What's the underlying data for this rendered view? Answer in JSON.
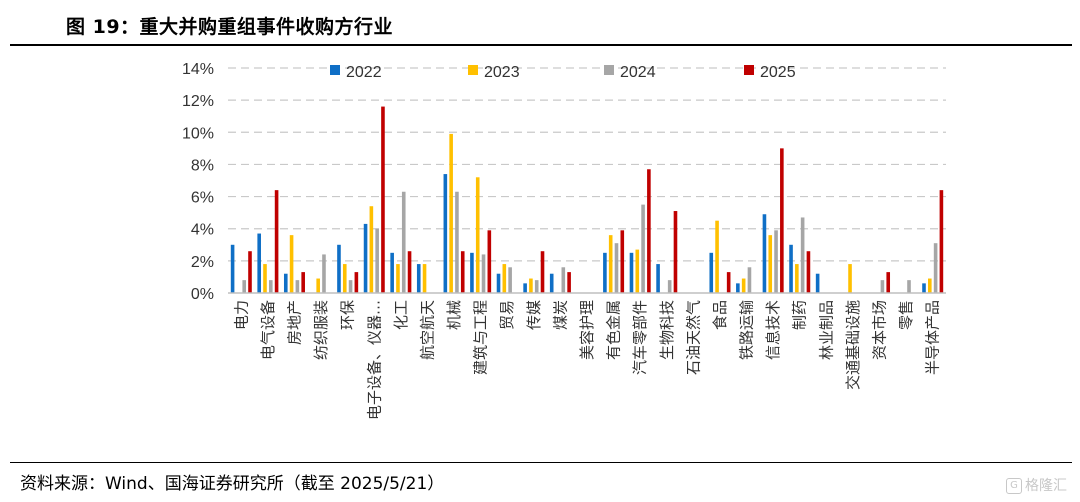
{
  "header": {
    "title": "图 19：重大并购重组事件收购方行业"
  },
  "footer": {
    "source": "资料来源：Wind、国海证券研究所（截至 2025/5/21）",
    "watermark": "格隆汇"
  },
  "chart_data": {
    "type": "bar",
    "title": "",
    "xlabel": "",
    "ylabel": "",
    "ylim": [
      0,
      14
    ],
    "y_ticks": [
      "0%",
      "2%",
      "4%",
      "6%",
      "8%",
      "10%",
      "12%",
      "14%"
    ],
    "grid": true,
    "legend_position": "top",
    "categories": [
      "电力",
      "电气设备",
      "房地产",
      "纺织服装",
      "环保",
      "电子设备、仪器…",
      "化工",
      "航空航天",
      "机械",
      "建筑与工程",
      "贸易",
      "传媒",
      "煤炭",
      "美容护理",
      "有色金属",
      "汽车零部件",
      "生物科技",
      "石油天然气",
      "食品",
      "铁路运输",
      "信息技术",
      "制药",
      "林业制品",
      "交通基础设施",
      "资本市场",
      "零售",
      "半导体产品"
    ],
    "series": [
      {
        "name": "2022",
        "color": "#0f6fc6",
        "values": [
          3.0,
          3.7,
          1.2,
          0.0,
          3.0,
          4.3,
          2.5,
          1.8,
          7.4,
          2.5,
          1.2,
          0.6,
          1.2,
          0.0,
          2.5,
          2.5,
          1.8,
          0.0,
          2.5,
          0.6,
          4.9,
          3.0,
          1.2,
          0.0,
          0.0,
          0.0,
          0.6
        ]
      },
      {
        "name": "2023",
        "color": "#ffc000",
        "values": [
          0.0,
          1.8,
          3.6,
          0.9,
          1.8,
          5.4,
          1.8,
          1.8,
          9.9,
          7.2,
          1.8,
          0.9,
          0.0,
          0.0,
          3.6,
          2.7,
          0.0,
          0.0,
          4.5,
          0.9,
          3.6,
          1.8,
          0.0,
          1.8,
          0.0,
          0.0,
          0.9
        ]
      },
      {
        "name": "2024",
        "color": "#a6a6a6",
        "values": [
          0.8,
          0.8,
          0.8,
          2.4,
          0.8,
          4.0,
          6.3,
          0.0,
          6.3,
          2.4,
          1.6,
          0.8,
          1.6,
          0.0,
          3.1,
          5.5,
          0.8,
          0.0,
          0.0,
          1.6,
          3.9,
          4.7,
          0.0,
          0.0,
          0.8,
          0.8,
          3.1
        ]
      },
      {
        "name": "2025",
        "color": "#c00000",
        "values": [
          2.6,
          6.4,
          1.3,
          0.0,
          1.3,
          11.6,
          2.6,
          0.0,
          2.6,
          3.9,
          0.0,
          2.6,
          1.3,
          0.0,
          3.9,
          7.7,
          5.1,
          0.0,
          1.3,
          0.0,
          9.0,
          2.6,
          0.0,
          0.0,
          1.3,
          0.0,
          6.4
        ]
      }
    ]
  }
}
